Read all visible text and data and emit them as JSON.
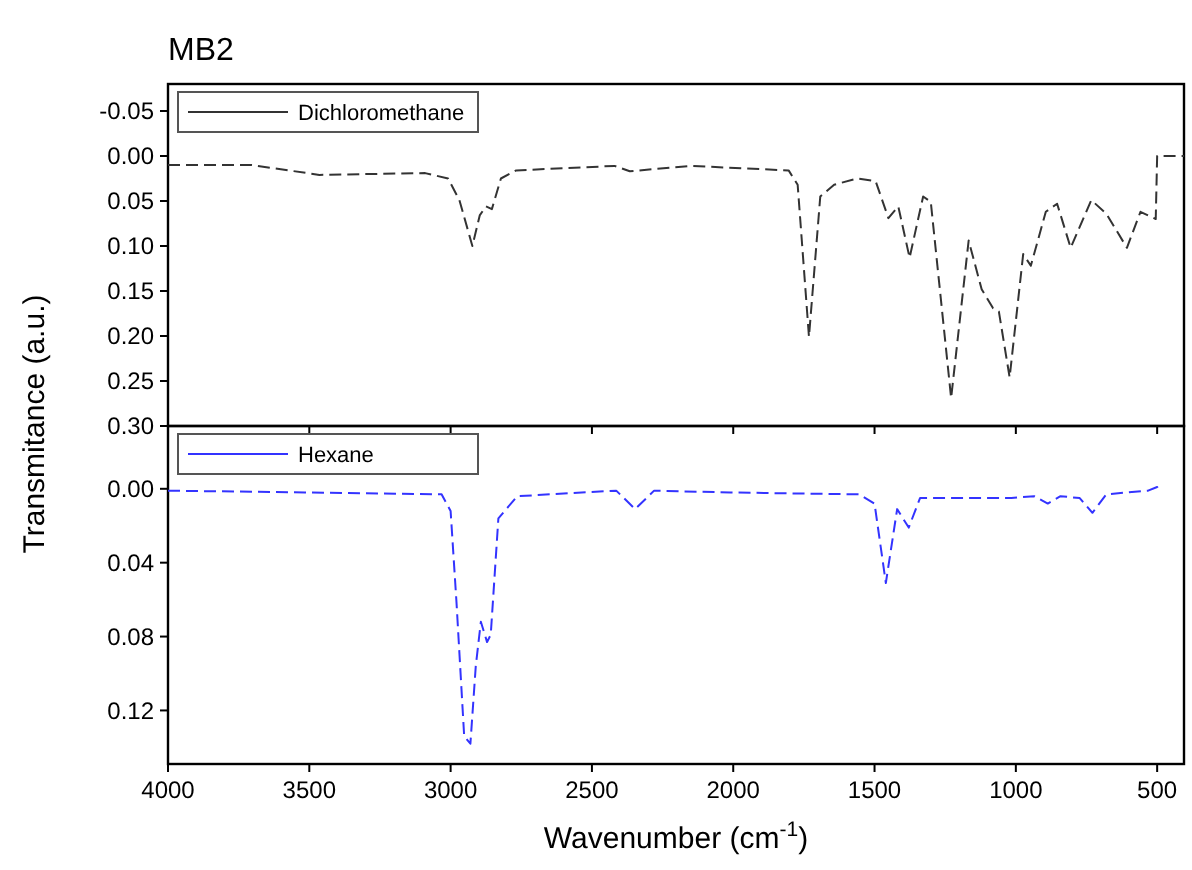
{
  "chart_data": [
    {
      "type": "line",
      "title": "MB2",
      "ylabel": "Transmitance (a.u.)",
      "legend": "top left",
      "line_style": "dashed",
      "tick_labels": "y",
      "xlim": [
        4000,
        405
      ],
      "xticks": [
        4000,
        3500,
        3000,
        2500,
        2000,
        1500,
        1000,
        500
      ],
      "ylim": [
        0.3,
        -0.08
      ],
      "yticks": [
        {
          "value": -0.05,
          "label": "-0.05"
        },
        {
          "value": 0,
          "label": "0.00"
        },
        {
          "value": 0.05,
          "label": "0.05"
        },
        {
          "value": 0.1,
          "label": "0.10"
        },
        {
          "value": 0.15,
          "label": "0.15"
        },
        {
          "value": 0.2,
          "label": "0.20"
        },
        {
          "value": 0.25,
          "label": "0.25"
        },
        {
          "value": 0.3,
          "label": "0.30"
        }
      ],
      "series": [
        {
          "name": "Dichloromethane",
          "color": "#333333",
          "x": [
            4000,
            3705,
            3464,
            3090,
            3009,
            2969,
            2923,
            2897,
            2875,
            2854,
            2822,
            2768,
            2420,
            2366,
            2152,
            1804,
            1772,
            1732,
            1692,
            1643,
            1563,
            1496,
            1451,
            1416,
            1376,
            1328,
            1301,
            1229,
            1167,
            1121,
            1081,
            1060,
            1022,
            974,
            947,
            894,
            854,
            806,
            733,
            680,
            607,
            559,
            505,
            500,
            405
          ],
          "values": [
            0.01,
            0.01,
            0.021,
            0.019,
            0.025,
            0.049,
            0.1,
            0.066,
            0.056,
            0.059,
            0.025,
            0.016,
            0.011,
            0.017,
            0.011,
            0.016,
            0.032,
            0.201,
            0.045,
            0.032,
            0.025,
            0.028,
            0.069,
            0.056,
            0.113,
            0.045,
            0.051,
            0.269,
            0.094,
            0.148,
            0.169,
            0.173,
            0.246,
            0.109,
            0.122,
            0.062,
            0.053,
            0.102,
            0.049,
            0.064,
            0.102,
            0.062,
            0.07,
            0.0,
            0.0
          ]
        }
      ]
    },
    {
      "type": "line",
      "xlabel": "Wavenumber (cm$^{-1}$)",
      "legend": "top left",
      "line_style": "dashed",
      "xlim": [
        4000,
        405
      ],
      "xticks": [
        4000,
        3500,
        3000,
        2500,
        2000,
        1500,
        1000,
        500
      ],
      "ylim": [
        0.149,
        -0.034
      ],
      "yticks": [
        {
          "value": 0,
          "label": "0.00"
        },
        {
          "value": 0.04,
          "label": "0.04"
        },
        {
          "value": 0.08,
          "label": "0.08"
        },
        {
          "value": 0.12,
          "label": "0.12"
        }
      ],
      "series": [
        {
          "name": "Hexane",
          "color": "#3333ff",
          "x": [
            4000,
            3516,
            3032,
            3000,
            2979,
            2952,
            2930,
            2911,
            2893,
            2871,
            2858,
            2831,
            2764,
            2414,
            2347,
            2280,
            2011,
            1554,
            1500,
            1460,
            1420,
            1379,
            1339,
            1016,
            935,
            887,
            842,
            774,
            729,
            680,
            532,
            500,
            492
          ],
          "values": [
            0.001,
            0.002,
            0.003,
            0.012,
            0.062,
            0.134,
            0.138,
            0.096,
            0.072,
            0.083,
            0.079,
            0.016,
            0.004,
            0.001,
            0.011,
            0.001,
            0.002,
            0.003,
            0.008,
            0.051,
            0.011,
            0.021,
            0.005,
            0.005,
            0.004,
            0.008,
            0.004,
            0.005,
            0.013,
            0.003,
            0.001,
            -0.001,
            0.002
          ]
        }
      ]
    }
  ]
}
